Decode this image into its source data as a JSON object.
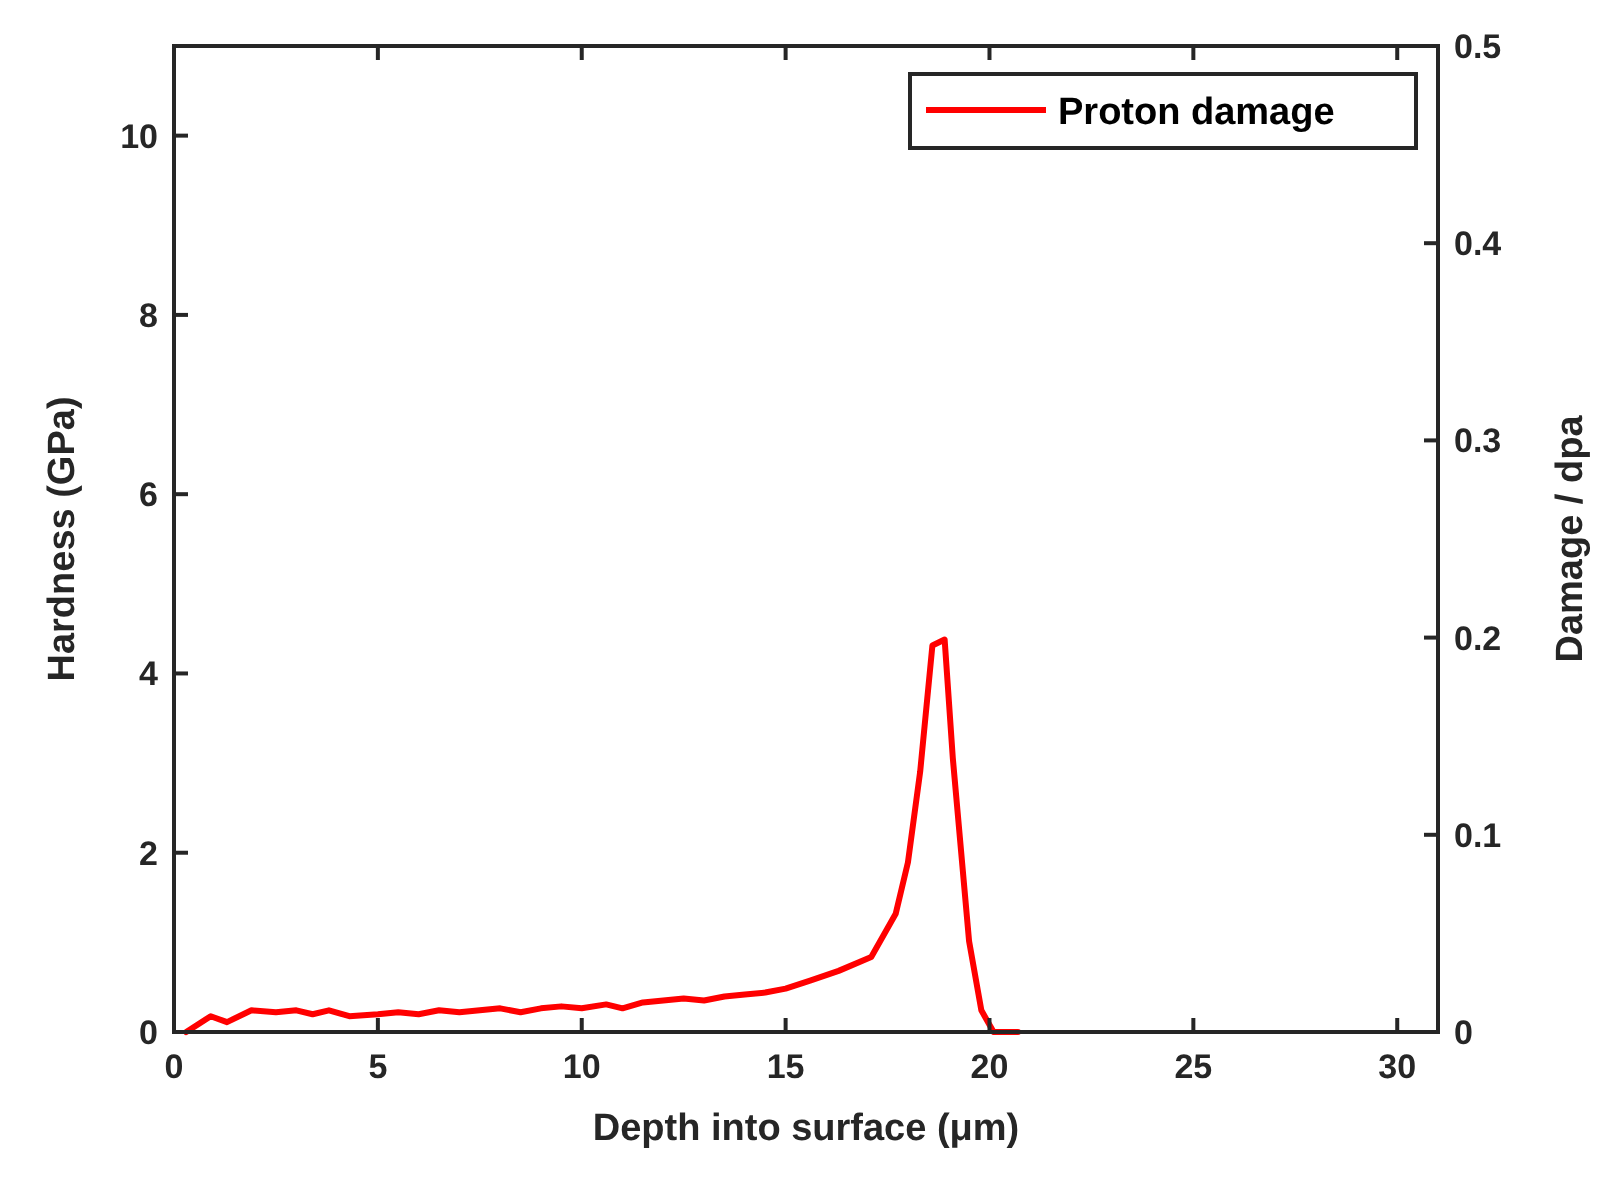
{
  "chart_data": {
    "type": "line",
    "xlabel": "Depth into surface (μm)",
    "ylabel": "Hardness (GPa)",
    "y2label": "Damage / dpa",
    "xlim": [
      0,
      31
    ],
    "xticks": [
      0,
      5,
      10,
      15,
      20,
      25,
      30
    ],
    "ylim": [
      0,
      11
    ],
    "yticks": [
      0,
      2,
      4,
      6,
      8,
      10
    ],
    "y2lim": [
      0,
      0.5
    ],
    "y2ticks": [
      0,
      0.1,
      0.2,
      0.3,
      0.4,
      0.5
    ],
    "legend": "top right",
    "grid": false,
    "line_style": "solid",
    "marker": "none",
    "series": [
      {
        "name": "Proton damage",
        "color": "#ff0000",
        "axis": "y2",
        "x": [
          0.3,
          0.9,
          1.3,
          1.9,
          2.5,
          3.0,
          3.4,
          3.8,
          4.3,
          5,
          5.5,
          6,
          6.5,
          7,
          7.5,
          8,
          8.5,
          9,
          9.5,
          10,
          10.6,
          11,
          11.5,
          12,
          12.5,
          13,
          13.5,
          14,
          14.5,
          15,
          15.6,
          16.3,
          17.1,
          17.7,
          18.0,
          18.3,
          18.6,
          18.9,
          19.1,
          19.5,
          19.8,
          20.1,
          20.7
        ],
        "values": [
          0,
          0.008,
          0.005,
          0.011,
          0.01,
          0.011,
          0.009,
          0.011,
          0.008,
          0.009,
          0.01,
          0.009,
          0.011,
          0.01,
          0.011,
          0.012,
          0.01,
          0.012,
          0.013,
          0.012,
          0.014,
          0.012,
          0.015,
          0.016,
          0.017,
          0.016,
          0.018,
          0.019,
          0.02,
          0.022,
          0.026,
          0.031,
          0.038,
          0.06,
          0.086,
          0.132,
          0.196,
          0.199,
          0.139,
          0.046,
          0.011,
          0,
          0
        ]
      }
    ]
  }
}
